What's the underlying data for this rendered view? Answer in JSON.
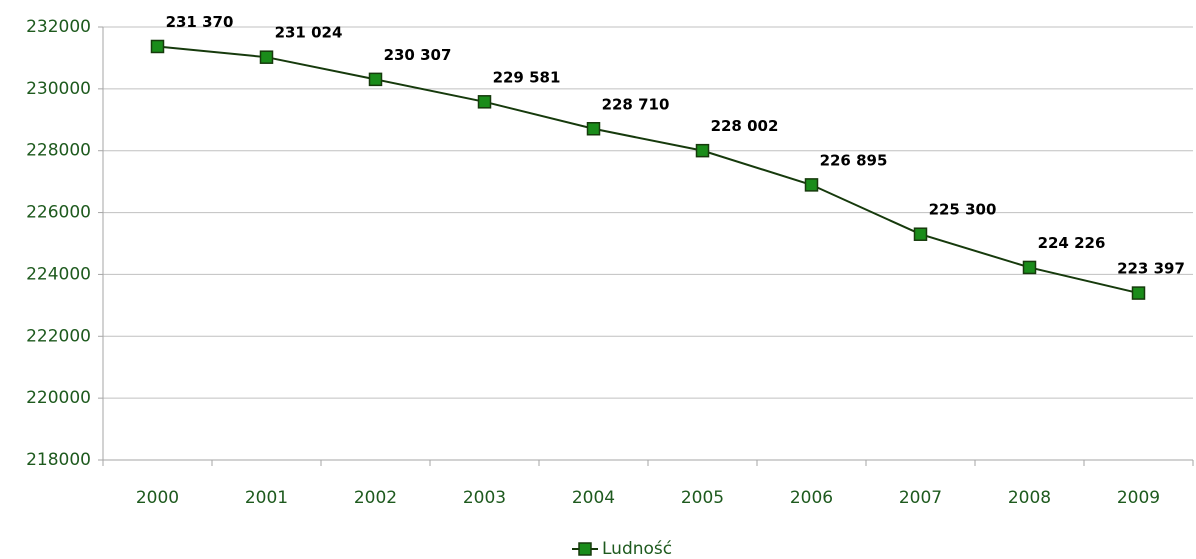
{
  "chart_data": {
    "type": "line",
    "categories": [
      "2000",
      "2001",
      "2002",
      "2003",
      "2004",
      "2005",
      "2006",
      "2007",
      "2008",
      "2009"
    ],
    "series": [
      {
        "name": "Ludność",
        "color": "#1a8c1a",
        "line_color": "#163a0c",
        "values": [
          231370,
          231024,
          230307,
          229581,
          228710,
          228002,
          226895,
          225300,
          224226,
          223397
        ],
        "value_labels": [
          "231 370",
          "231 024",
          "230 307",
          "229 581",
          "228 710",
          "228 002",
          "226 895",
          "225 300",
          "224 226",
          "223 397"
        ]
      }
    ],
    "ylim": [
      218000,
      232000
    ],
    "yticks": [
      218000,
      220000,
      222000,
      224000,
      226000,
      228000,
      230000,
      232000
    ],
    "grid": true,
    "legend": "bottom"
  }
}
